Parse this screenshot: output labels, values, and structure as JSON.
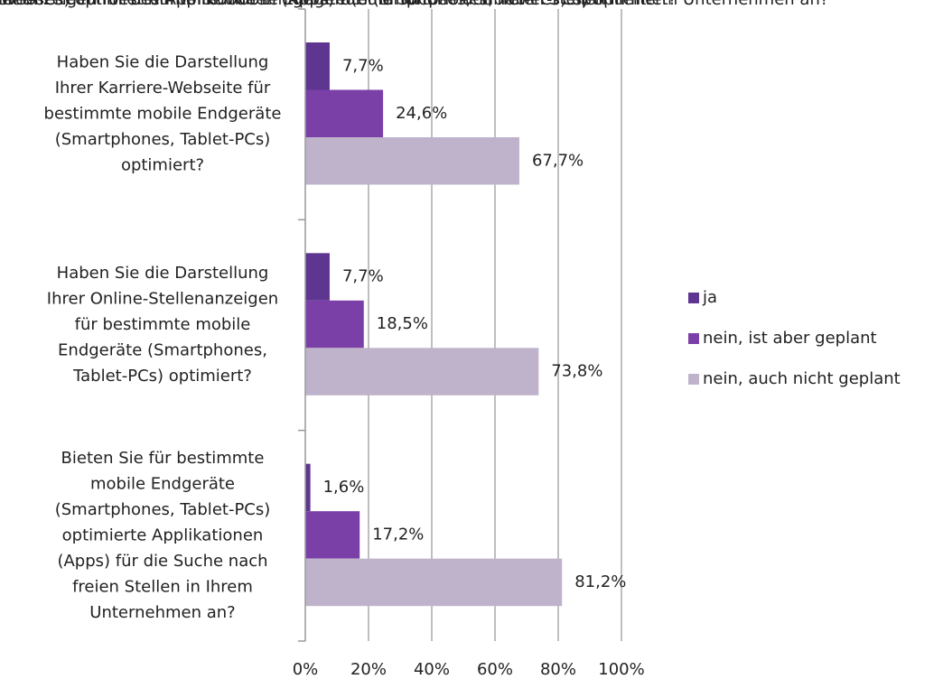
{
  "chart_data": {
    "type": "hbar",
    "categories": [
      "Haben Sie die Darstellung\nIhrer Karriere-Webseite für\nbestimmte mobile Endgeräte\n(Smartphones, Tablet-PCs)\noptimiert?",
      "Haben Sie die Darstellung\nIhrer Online-Stellenanzeigen\nfür bestimmte mobile\nEndgeräte (Smartphones,\nTablet-PCs) optimiert?",
      "Bieten Sie für bestimmte\nmobile Endgeräte\n(Smartphones, Tablet-PCs)\noptimierte Applikationen\n(Apps) für die Suche nach\nfreien Stellen in Ihrem\nUnternehmen an?"
    ],
    "series": [
      {
        "name": "ja",
        "color": "#5e3590",
        "values": [
          7.7,
          7.7,
          1.6
        ],
        "value_labels": [
          "7,7%",
          "7,7%",
          "1,6%"
        ]
      },
      {
        "name": "nein, ist aber geplant",
        "color": "#7b3fa8",
        "values": [
          24.6,
          18.5,
          17.2
        ],
        "value_labels": [
          "24,6%",
          "18,5%",
          "17,2%"
        ]
      },
      {
        "name": "nein, auch nicht geplant",
        "color": "#bfb3cc",
        "values": [
          67.7,
          73.8,
          81.2
        ],
        "value_labels": [
          "67,7%",
          "73,8%",
          "81,2%"
        ]
      }
    ],
    "xlim": [
      0,
      100
    ],
    "xticks": [
      {
        "value": 0,
        "label": "0%"
      },
      {
        "value": 20,
        "label": "20%"
      },
      {
        "value": 40,
        "label": "40%"
      },
      {
        "value": 60,
        "label": "60%"
      },
      {
        "value": 80,
        "label": "80%"
      },
      {
        "value": 100,
        "label": "100%"
      }
    ],
    "grid": true,
    "legend": "right"
  }
}
